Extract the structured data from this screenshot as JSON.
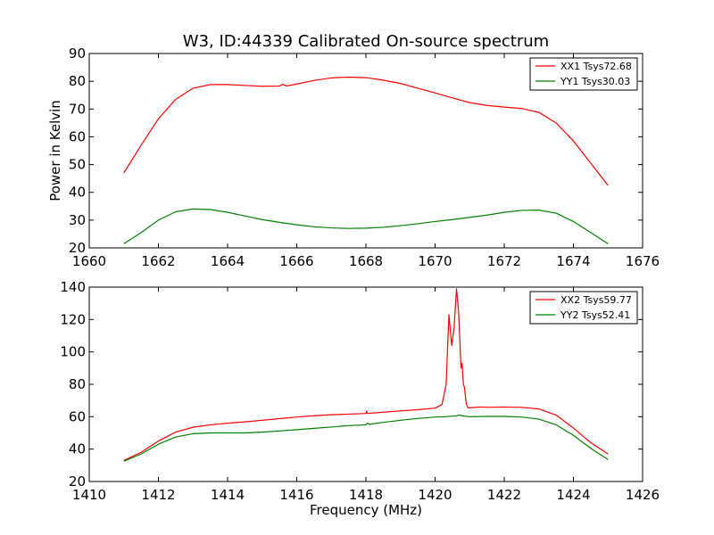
{
  "figure": {
    "title": "W3, ID:44339 Calibrated On-source spectrum",
    "ylabel": "Power in Kelvin",
    "xlabel": "Frequency (MHz)"
  },
  "chart_data": [
    {
      "type": "line",
      "xlim": [
        1660,
        1676
      ],
      "ylim": [
        20,
        90
      ],
      "xticks": [
        "1660",
        "1662",
        "1664",
        "1666",
        "1668",
        "1670",
        "1672",
        "1674",
        "1676"
      ],
      "yticks": [
        "20",
        "30",
        "40",
        "50",
        "60",
        "70",
        "80",
        "90"
      ],
      "legend_position": "top-right",
      "series": [
        {
          "name": "XX1 Tsys72.68",
          "color": "#ff0000",
          "x": [
            1661.0,
            1661.5,
            1662.0,
            1662.5,
            1663.0,
            1663.5,
            1664.0,
            1664.5,
            1665.0,
            1665.5,
            1665.6,
            1665.7,
            1666.0,
            1666.5,
            1667.0,
            1667.5,
            1668.0,
            1668.5,
            1669.0,
            1669.5,
            1670.0,
            1670.5,
            1671.0,
            1671.5,
            1672.0,
            1672.5,
            1673.0,
            1673.5,
            1674.0,
            1674.5,
            1675.0
          ],
          "y": [
            47.0,
            57.0,
            66.5,
            73.5,
            77.5,
            78.8,
            78.8,
            78.5,
            78.2,
            78.3,
            78.9,
            78.3,
            79.0,
            80.3,
            81.2,
            81.5,
            81.3,
            80.4,
            79.2,
            77.5,
            75.8,
            74.0,
            72.3,
            71.3,
            70.7,
            70.2,
            68.8,
            65.0,
            58.5,
            50.5,
            42.5
          ]
        },
        {
          "name": "YY1 Tsys30.03",
          "color": "#008000",
          "x": [
            1661.0,
            1661.5,
            1662.0,
            1662.5,
            1663.0,
            1663.5,
            1664.0,
            1664.5,
            1665.0,
            1665.5,
            1666.0,
            1666.5,
            1667.0,
            1667.5,
            1668.0,
            1668.5,
            1669.0,
            1669.5,
            1670.0,
            1670.5,
            1671.0,
            1671.5,
            1672.0,
            1672.5,
            1673.0,
            1673.5,
            1674.0,
            1674.5,
            1675.0
          ],
          "y": [
            21.5,
            25.5,
            30.0,
            33.0,
            34.0,
            33.8,
            32.8,
            31.5,
            30.2,
            29.2,
            28.3,
            27.6,
            27.2,
            27.0,
            27.1,
            27.4,
            28.0,
            28.7,
            29.5,
            30.2,
            31.0,
            31.8,
            32.8,
            33.5,
            33.6,
            32.5,
            29.5,
            25.5,
            21.5
          ]
        }
      ]
    },
    {
      "type": "line",
      "xlim": [
        1410,
        1426
      ],
      "ylim": [
        20,
        140
      ],
      "xticks": [
        "1410",
        "1412",
        "1414",
        "1416",
        "1418",
        "1420",
        "1422",
        "1424",
        "1426"
      ],
      "yticks": [
        "20",
        "40",
        "60",
        "80",
        "100",
        "120",
        "140"
      ],
      "legend_position": "top-right",
      "series": [
        {
          "name": "XX2 Tsys59.77",
          "color": "#ff0000",
          "x": [
            1411.0,
            1411.5,
            1412.0,
            1412.5,
            1413.0,
            1413.5,
            1414.0,
            1414.5,
            1415.0,
            1415.5,
            1416.0,
            1416.5,
            1417.0,
            1417.5,
            1418.0,
            1418.02,
            1418.05,
            1418.5,
            1419.0,
            1419.5,
            1420.0,
            1420.2,
            1420.32,
            1420.4,
            1420.48,
            1420.55,
            1420.62,
            1420.68,
            1420.75,
            1420.78,
            1420.82,
            1420.85,
            1420.9,
            1420.95,
            1421.0,
            1421.3,
            1421.5,
            1422.0,
            1422.5,
            1423.0,
            1423.5,
            1424.0,
            1424.5,
            1425.0
          ],
          "y": [
            33.0,
            38.0,
            45.0,
            50.5,
            53.5,
            55.0,
            56.0,
            56.8,
            57.8,
            58.8,
            59.8,
            60.6,
            61.2,
            61.6,
            62.0,
            63.5,
            62.0,
            62.8,
            63.6,
            64.3,
            65.3,
            67.5,
            80.0,
            123.0,
            104.0,
            115.0,
            139.0,
            125.0,
            90.0,
            93.0,
            80.0,
            78.0,
            68.0,
            65.5,
            65.5,
            66.0,
            65.8,
            66.0,
            65.8,
            64.8,
            61.0,
            53.0,
            44.0,
            37.0
          ]
        },
        {
          "name": "YY2 Tsys52.41",
          "color": "#008000",
          "x": [
            1411.0,
            1411.5,
            1412.0,
            1412.5,
            1413.0,
            1413.5,
            1414.0,
            1414.5,
            1415.0,
            1415.5,
            1416.0,
            1416.5,
            1417.0,
            1417.5,
            1418.0,
            1418.05,
            1418.1,
            1418.5,
            1419.0,
            1419.5,
            1420.0,
            1420.3,
            1420.6,
            1420.7,
            1420.8,
            1421.0,
            1421.5,
            1422.0,
            1422.5,
            1423.0,
            1423.5,
            1424.0,
            1424.5,
            1425.0
          ],
          "y": [
            32.5,
            37.0,
            43.0,
            47.5,
            49.5,
            50.0,
            50.0,
            50.0,
            50.5,
            51.2,
            52.0,
            52.8,
            53.6,
            54.5,
            55.0,
            56.0,
            55.3,
            56.5,
            57.8,
            58.9,
            59.8,
            60.0,
            60.5,
            61.0,
            60.5,
            60.0,
            60.2,
            60.2,
            59.8,
            58.5,
            55.0,
            48.5,
            40.5,
            33.5
          ]
        }
      ]
    }
  ]
}
